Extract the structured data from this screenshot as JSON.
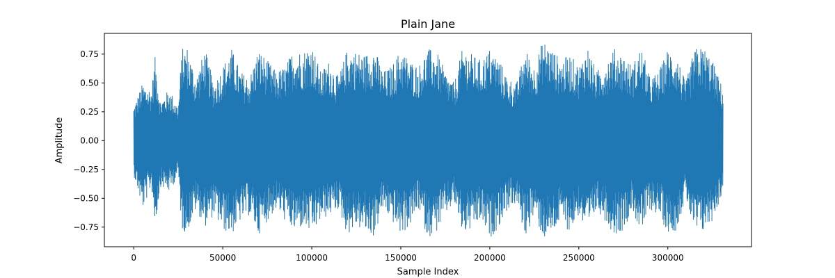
{
  "chart_data": {
    "type": "line",
    "title": "Plain Jane",
    "xlabel": "Sample Index",
    "ylabel": "Amplitude",
    "xlim": [
      -16500,
      347000
    ],
    "ylim": [
      -0.92,
      0.93
    ],
    "x_ticks": [
      0,
      50000,
      100000,
      150000,
      200000,
      250000,
      300000
    ],
    "x_tick_labels": [
      "0",
      "50000",
      "100000",
      "150000",
      "200000",
      "250000",
      "300000"
    ],
    "y_ticks": [
      0.75,
      0.5,
      0.25,
      0.0,
      -0.25,
      -0.5,
      -0.75
    ],
    "y_tick_labels": [
      "0.75",
      "0.50",
      "0.25",
      "0.00",
      "−0.25",
      "−0.50",
      "−0.75"
    ],
    "grid": false,
    "legend": "none",
    "series": [
      {
        "color": "#1f77b4",
        "x_range": [
          0,
          331000
        ],
        "envelope_x": [
          0,
          5000,
          10000,
          12000,
          15000,
          20000,
          25000,
          27000,
          30000,
          35000,
          40000,
          45000,
          50000,
          55000,
          60000,
          65000,
          70000,
          75000,
          80000,
          85000,
          90000,
          95000,
          100000,
          105000,
          110000,
          115000,
          120000,
          125000,
          130000,
          135000,
          140000,
          145000,
          150000,
          155000,
          160000,
          165000,
          170000,
          175000,
          180000,
          185000,
          190000,
          195000,
          200000,
          205000,
          210000,
          215000,
          220000,
          225000,
          230000,
          235000,
          240000,
          245000,
          250000,
          255000,
          260000,
          265000,
          270000,
          275000,
          280000,
          285000,
          290000,
          295000,
          300000,
          305000,
          310000,
          315000,
          320000,
          325000,
          331000
        ],
        "envelope_max": [
          0.3,
          0.5,
          0.45,
          0.73,
          0.35,
          0.45,
          0.3,
          0.8,
          0.82,
          0.55,
          0.8,
          0.5,
          0.65,
          0.8,
          0.6,
          0.55,
          0.8,
          0.7,
          0.6,
          0.65,
          0.8,
          0.78,
          0.85,
          0.6,
          0.7,
          0.55,
          0.8,
          0.78,
          0.75,
          0.82,
          0.6,
          0.65,
          0.8,
          0.7,
          0.65,
          0.8,
          0.78,
          0.6,
          0.5,
          0.82,
          0.75,
          0.7,
          0.8,
          0.72,
          0.55,
          0.5,
          0.8,
          0.65,
          0.88,
          0.8,
          0.7,
          0.75,
          0.65,
          0.82,
          0.6,
          0.7,
          0.8,
          0.75,
          0.65,
          0.82,
          0.55,
          0.6,
          0.8,
          0.75,
          0.5,
          0.8,
          0.82,
          0.7,
          0.45
        ],
        "envelope_min": [
          -0.3,
          -0.6,
          -0.4,
          -0.75,
          -0.4,
          -0.45,
          -0.3,
          -0.78,
          -0.8,
          -0.6,
          -0.75,
          -0.65,
          -0.78,
          -0.82,
          -0.7,
          -0.65,
          -0.82,
          -0.7,
          -0.6,
          -0.7,
          -0.8,
          -0.75,
          -0.82,
          -0.7,
          -0.65,
          -0.6,
          -0.82,
          -0.75,
          -0.8,
          -0.84,
          -0.6,
          -0.7,
          -0.82,
          -0.75,
          -0.6,
          -0.84,
          -0.8,
          -0.65,
          -0.55,
          -0.82,
          -0.78,
          -0.7,
          -0.86,
          -0.75,
          -0.6,
          -0.55,
          -0.84,
          -0.65,
          -0.86,
          -0.82,
          -0.7,
          -0.8,
          -0.65,
          -0.84,
          -0.6,
          -0.7,
          -0.82,
          -0.78,
          -0.6,
          -0.82,
          -0.6,
          -0.65,
          -0.8,
          -0.78,
          -0.5,
          -0.82,
          -0.8,
          -0.7,
          -0.45
        ]
      }
    ]
  }
}
